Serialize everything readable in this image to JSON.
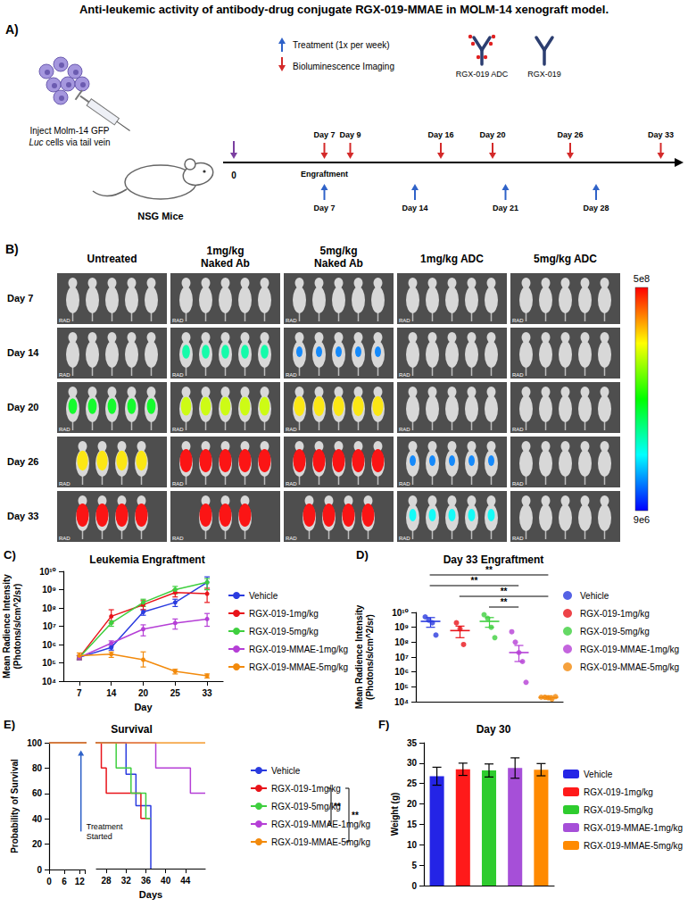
{
  "title": "Anti-leukemic activity of antibody-drug conjugate RGX-019-MMAE in MOLM-14 xenograft model.",
  "diagram": {
    "letter": "A)",
    "legend": {
      "treatment": "Treatment (1x per week)",
      "imaging": "Bioluminescence Imaging",
      "adc": "RGX-019 ADC",
      "antibody": "RGX-019"
    },
    "injection": [
      "Inject Molm-14 GFP",
      "Luc cells via tail vein"
    ],
    "mouse": "NSG Mice",
    "timeline": {
      "start": {
        "day": 0,
        "label": "0"
      },
      "imaging": [
        {
          "day": 7,
          "label": "Day 7"
        },
        {
          "day": 9,
          "label": "Day 9"
        },
        {
          "day": 16,
          "label": "Day 16"
        },
        {
          "day": 20,
          "label": "Day 20"
        },
        {
          "day": 26,
          "label": "Day 26"
        },
        {
          "day": 33,
          "label": "Day 33"
        }
      ],
      "engraftment": {
        "day": 7,
        "label": "Engraftment"
      },
      "treatment": [
        {
          "day": 7,
          "label": "Day 7"
        },
        {
          "day": 14,
          "label": "Day 14"
        },
        {
          "day": 21,
          "label": "Day 21"
        },
        {
          "day": 28,
          "label": "Day 28"
        }
      ]
    }
  },
  "images": {
    "letter": "B)",
    "columns": [
      "Untreated",
      "1mg/kg Naked Ab",
      "5mg/kg Naked Ab",
      "1mg/kg ADC",
      "5mg/kg ADC"
    ],
    "rows": [
      "Day 7",
      "Day 14",
      "Day 20",
      "Day 26",
      "Day 33"
    ],
    "mice": [
      [
        5,
        5,
        5,
        5,
        5
      ],
      [
        5,
        5,
        5,
        5,
        5
      ],
      [
        5,
        5,
        5,
        5,
        5
      ],
      [
        4,
        5,
        5,
        5,
        5
      ],
      [
        4,
        3,
        4,
        5,
        5
      ]
    ],
    "image_label": "RAD",
    "colorbar": {
      "max": {
        "value": 500000000,
        "label": "5e8"
      },
      "min": {
        "value": 9000000,
        "label": "9e6"
      }
    }
  },
  "chart_data": [
    {
      "type": "line",
      "letter": "C)",
      "title": "Leukemia Engraftment",
      "xlabel": "Day",
      "ylabel": "Mean Radience Intensity (Photons/s/cm^2/sr)",
      "categories": [
        "7",
        "14",
        "20",
        "25",
        "33"
      ],
      "log": "y",
      "grid": false,
      "legend": "right",
      "marker": "circle",
      "ylim": [
        10000,
        10000000000
      ],
      "yticks": [
        {
          "value": 10000,
          "label": "10⁴"
        },
        {
          "value": 100000,
          "label": "10⁵"
        },
        {
          "value": 1000000,
          "label": "10⁶"
        },
        {
          "value": 10000000,
          "label": "10⁷"
        },
        {
          "value": 100000000,
          "label": "10⁸"
        },
        {
          "value": 1000000000,
          "label": "10⁹"
        },
        {
          "value": 10000000000,
          "label": "10¹⁰"
        }
      ],
      "series": [
        {
          "name": "Vehicle",
          "color": "#2a3bdf",
          "values": [
            200000,
            700000,
            60000000,
            200000000,
            2500000000
          ],
          "error_bars": [
            [
              150000,
              250000
            ],
            [
              500000,
              1000000
            ],
            [
              40000000,
              80000000
            ],
            [
              120000000,
              300000000
            ],
            [
              1000000000,
              5000000000
            ]
          ]
        },
        {
          "name": "RGX-019-1mg/kg",
          "color": "#e8141a",
          "values": [
            200000,
            35000000,
            150000000,
            700000000,
            600000000
          ],
          "error_bars": [
            [
              150000,
              250000
            ],
            [
              15000000,
              80000000
            ],
            [
              80000000,
              250000000
            ],
            [
              400000000,
              1000000000
            ],
            [
              200000000,
              1200000000
            ]
          ]
        },
        {
          "name": "RGX-019-5mg/kg",
          "color": "#3fcf3f",
          "values": [
            200000,
            15000000,
            200000000,
            1000000000,
            2500000000
          ],
          "error_bars": [
            [
              150000,
              250000
            ],
            [
              10000000,
              20000000
            ],
            [
              120000000,
              300000000
            ],
            [
              600000000,
              1500000000
            ],
            [
              1000000000,
              4000000000
            ]
          ]
        },
        {
          "name": "RGX-019-MMAE-1mg/kg",
          "color": "#b53fd6",
          "values": [
            200000,
            1200000,
            7000000,
            15000000,
            25000000
          ],
          "error_bars": [
            [
              150000,
              250000
            ],
            [
              800000,
              1600000
            ],
            [
              3000000,
              12000000
            ],
            [
              7000000,
              25000000
            ],
            [
              10000000,
              50000000
            ]
          ]
        },
        {
          "name": "RGX-019-MMAE-5mg/kg",
          "color": "#f28a0c",
          "values": [
            250000,
            300000,
            150000,
            35000,
            20000
          ],
          "error_bars": [
            [
              180000,
              350000
            ],
            [
              200000,
              400000
            ],
            [
              60000,
              400000
            ],
            [
              25000,
              45000
            ],
            [
              15000,
              25000
            ]
          ]
        }
      ]
    },
    {
      "type": "scatter",
      "letter": "D)",
      "title": "Day 33 Engraftment",
      "ylabel": "Mean Radience Intensity (Photons/s/cm^2/sr)",
      "log": "y",
      "grid": false,
      "legend": "right",
      "marker": "circle",
      "tick_labels": "y",
      "ylim": [
        10000,
        10000000000
      ],
      "yticks": [
        {
          "value": 10000,
          "label": "10⁴"
        },
        {
          "value": 100000,
          "label": "10⁵"
        },
        {
          "value": 1000000,
          "label": "10⁶"
        },
        {
          "value": 10000000,
          "label": "10⁷"
        },
        {
          "value": 100000000,
          "label": "10⁸"
        },
        {
          "value": 1000000000,
          "label": "10⁹"
        },
        {
          "value": 10000000000,
          "label": "10¹⁰"
        }
      ],
      "series": [
        {
          "name": "Vehicle",
          "color": "#2a3bdf",
          "values": [
            5000000000,
            3000000000,
            2000000000,
            300000000
          ],
          "mean": 2500000000,
          "error_bar": [
            1000000000,
            4500000000
          ]
        },
        {
          "name": "RGX-019-1mg/kg",
          "color": "#e8141a",
          "values": [
            2000000000,
            800000000,
            70000000
          ],
          "mean": 600000000,
          "error_bar": [
            200000000,
            1200000000
          ]
        },
        {
          "name": "RGX-019-5mg/kg",
          "color": "#3fcf3f",
          "values": [
            7000000000,
            4000000000,
            1000000000,
            200000000
          ],
          "mean": 2500000000,
          "error_bar": [
            1000000000,
            4500000000
          ]
        },
        {
          "name": "RGX-019-MMAE-1mg/kg",
          "color": "#b53fd6",
          "values": [
            500000000,
            100000000,
            20000000,
            5000000,
            200000
          ],
          "mean": 20000000,
          "error_bar": [
            5000000,
            60000000
          ]
        },
        {
          "name": "RGX-019-MMAE-5mg/kg",
          "color": "#f28a0c",
          "values": [
            20000,
            20000,
            18000,
            15000,
            22000
          ],
          "mean": 19000,
          "error_bar": [
            15000,
            25000
          ]
        }
      ],
      "significance": [
        {
          "groups": [
            "Vehicle",
            "RGX-019-MMAE-5mg/kg"
          ],
          "label": "**"
        },
        {
          "groups": [
            "Vehicle",
            "RGX-019-MMAE-1mg/kg"
          ],
          "label": "**"
        },
        {
          "groups": [
            "RGX-019-1mg/kg",
            "RGX-019-MMAE-5mg/kg"
          ],
          "label": "**"
        },
        {
          "groups": [
            "RGX-019-5mg/kg",
            "RGX-019-MMAE-1mg/kg"
          ],
          "label": "**"
        }
      ]
    },
    {
      "type": "line",
      "line_style": "step",
      "letter": "E)",
      "title": "Survival",
      "xlabel": "Days",
      "ylabel": "Probability of Survival",
      "grid": false,
      "legend": "right",
      "xlim": [
        0,
        48
      ],
      "xbreak": [
        14,
        26
      ],
      "xticks": [
        0,
        6,
        12,
        28,
        32,
        36,
        40,
        44
      ],
      "ylim": [
        0,
        100
      ],
      "yticks": [
        0,
        20,
        40,
        60,
        80,
        100
      ],
      "series": [
        {
          "name": "Vehicle",
          "color": "#2a3bdf",
          "x": [
            0,
            32,
            34,
            37
          ],
          "values": [
            100,
            75,
            50,
            0
          ]
        },
        {
          "name": "RGX-019-1mg/kg",
          "color": "#e8141a",
          "x": [
            0,
            27,
            28,
            35,
            37
          ],
          "values": [
            100,
            80,
            60,
            40,
            40
          ]
        },
        {
          "name": "RGX-019-5mg/kg",
          "color": "#3fcf3f",
          "x": [
            0,
            30,
            33,
            36,
            37
          ],
          "values": [
            100,
            80,
            60,
            40,
            40
          ]
        },
        {
          "name": "RGX-019-MMAE-1mg/kg",
          "color": "#b53fd6",
          "x": [
            0,
            38,
            45,
            48
          ],
          "values": [
            100,
            80,
            60,
            60
          ]
        },
        {
          "name": "RGX-019-MMAE-5mg/kg",
          "color": "#f28a0c",
          "x": [
            0,
            48
          ],
          "values": [
            100,
            100
          ]
        }
      ],
      "annotations": [
        {
          "x": 12.5,
          "label": "Treatment Started"
        }
      ],
      "significance": [
        {
          "groups": [
            "RGX-019-1mg/kg",
            "RGX-019-MMAE-1mg/kg"
          ],
          "label": "**"
        },
        {
          "groups": [
            "RGX-019-1mg/kg",
            "RGX-019-MMAE-5mg/kg"
          ],
          "label": "**"
        }
      ]
    },
    {
      "type": "bar",
      "letter": "F)",
      "title": "Day 30",
      "ylabel": "Weight (g)",
      "grid": false,
      "legend": "right",
      "tick_labels": "y",
      "categories": [
        "Vehicle",
        "RGX-019-1mg/kg",
        "RGX-019-5mg/kg",
        "RGX-019-MMAE-1mg/kg",
        "RGX-019-MMAE-5mg/kg"
      ],
      "values": [
        26.8,
        28.5,
        28.2,
        28.8,
        28.4
      ],
      "errors": [
        2.2,
        1.5,
        1.6,
        2.5,
        1.5
      ],
      "colors": [
        "#2424e6",
        "#ff1a1a",
        "#2ecc2e",
        "#a64fd8",
        "#ff8a00"
      ],
      "ylim": [
        0,
        35
      ],
      "yticks": [
        0,
        5,
        10,
        15,
        20,
        25,
        30,
        35
      ]
    }
  ]
}
